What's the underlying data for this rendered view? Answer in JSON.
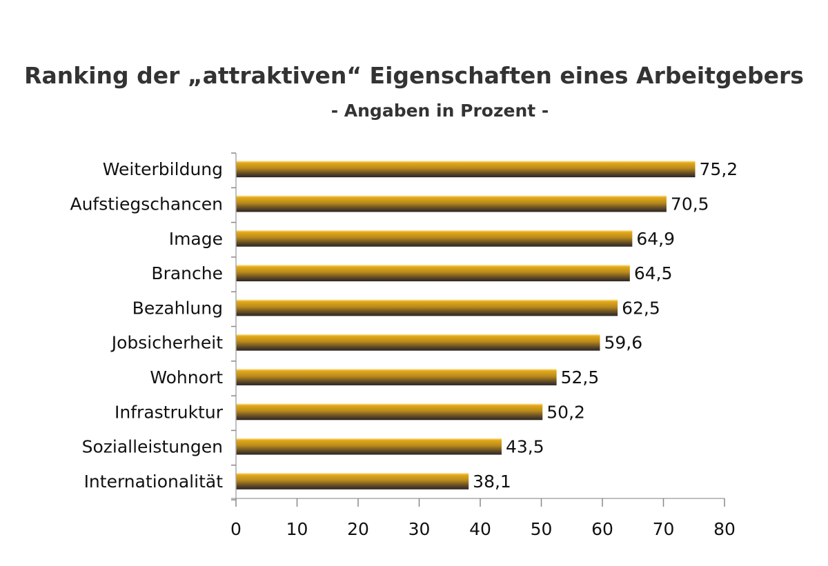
{
  "chart_data": {
    "type": "bar",
    "orientation": "horizontal",
    "title": "Ranking der „attraktiven“ Eigenschaften eines Arbeitgebers",
    "subtitle": "- Angaben in Prozent -",
    "categories": [
      "Weiterbildung",
      "Aufstiegschancen",
      "Image",
      "Branche",
      "Bezahlung",
      "Jobsicherheit",
      "Wohnort",
      "Infrastruktur",
      "Sozialleistungen",
      "Internationalität"
    ],
    "values": [
      75.2,
      70.5,
      64.9,
      64.5,
      62.5,
      59.6,
      52.5,
      50.2,
      43.5,
      38.1
    ],
    "value_labels": [
      "75,2",
      "70,5",
      "64,9",
      "64,5",
      "62,5",
      "59,6",
      "52,5",
      "50,2",
      "43,5",
      "38,1"
    ],
    "xlim": [
      0,
      80
    ],
    "xticks": [
      "0",
      "10",
      "20",
      "30",
      "40",
      "50",
      "60",
      "70",
      "80"
    ],
    "grid": false,
    "legend": "none",
    "bar_colors": {
      "top": "#f0b820",
      "middle": "#b8861a",
      "bottom": "#2e2a28"
    }
  }
}
